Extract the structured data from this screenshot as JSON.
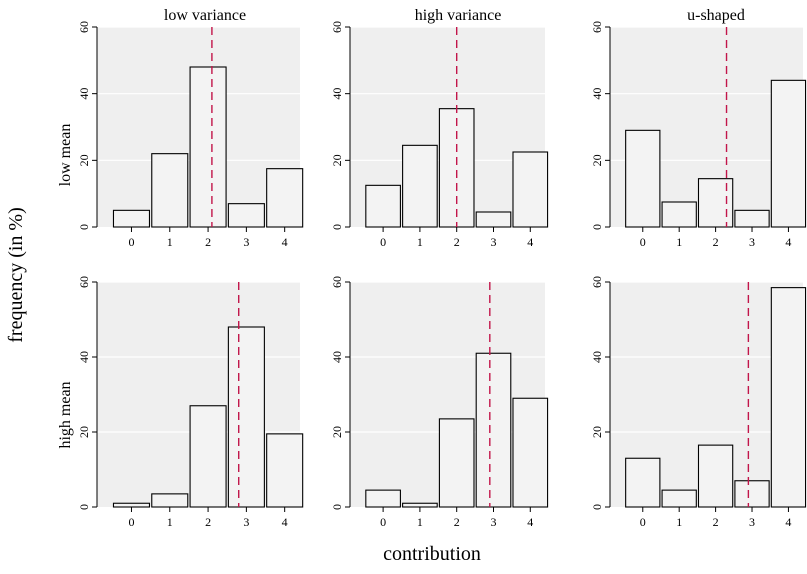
{
  "figure": {
    "ylabel": "frequency (in %)",
    "xlabel": "contribution",
    "col_titles": [
      "low variance",
      "high variance",
      "u-shaped"
    ],
    "row_titles": [
      "low mean",
      "high mean"
    ]
  },
  "chart_data": [
    {
      "type": "bar",
      "row": "low mean",
      "col": "low variance",
      "categories": [
        "0",
        "1",
        "2",
        "3",
        "4"
      ],
      "values": [
        5,
        22,
        48,
        7,
        17.5
      ],
      "mean_line": 2.1,
      "ylim": [
        0,
        60
      ],
      "yticks": [
        0,
        20,
        40,
        60
      ],
      "xlim": [
        -0.9,
        4.4
      ]
    },
    {
      "type": "bar",
      "row": "low mean",
      "col": "high variance",
      "categories": [
        "0",
        "1",
        "2",
        "3",
        "4"
      ],
      "values": [
        12.5,
        24.5,
        35.5,
        4.5,
        22.5
      ],
      "mean_line": 2.0,
      "ylim": [
        0,
        60
      ],
      "yticks": [
        0,
        20,
        40,
        60
      ],
      "xlim": [
        -0.9,
        4.4
      ]
    },
    {
      "type": "bar",
      "row": "low mean",
      "col": "u-shaped",
      "categories": [
        "0",
        "1",
        "2",
        "3",
        "4"
      ],
      "values": [
        29,
        7.5,
        14.5,
        5,
        44
      ],
      "mean_line": 2.3,
      "ylim": [
        0,
        60
      ],
      "yticks": [
        0,
        20,
        40,
        60
      ],
      "xlim": [
        -0.9,
        4.4
      ]
    },
    {
      "type": "bar",
      "row": "high mean",
      "col": "low variance",
      "categories": [
        "0",
        "1",
        "2",
        "3",
        "4"
      ],
      "values": [
        1,
        3.5,
        27,
        48,
        19.5
      ],
      "mean_line": 2.8,
      "ylim": [
        0,
        60
      ],
      "yticks": [
        0,
        20,
        40,
        60
      ],
      "xlim": [
        -0.9,
        4.4
      ]
    },
    {
      "type": "bar",
      "row": "high mean",
      "col": "high variance",
      "categories": [
        "0",
        "1",
        "2",
        "3",
        "4"
      ],
      "values": [
        4.5,
        1,
        23.5,
        41,
        29
      ],
      "mean_line": 2.9,
      "ylim": [
        0,
        60
      ],
      "yticks": [
        0,
        20,
        40,
        60
      ],
      "xlim": [
        -0.9,
        4.4
      ]
    },
    {
      "type": "bar",
      "row": "high mean",
      "col": "u-shaped",
      "categories": [
        "0",
        "1",
        "2",
        "3",
        "4"
      ],
      "values": [
        13,
        4.5,
        16.5,
        7,
        58.5
      ],
      "mean_line": 2.9,
      "ylim": [
        0,
        60
      ],
      "yticks": [
        0,
        20,
        40,
        60
      ],
      "xlim": [
        -0.9,
        4.4
      ]
    }
  ],
  "colors": {
    "panel_bg": "#efefef",
    "grid": "#ffffff",
    "bar_fill": "#f3f3f3",
    "bar_stroke": "#000000",
    "mean_line": "#c2154a"
  }
}
